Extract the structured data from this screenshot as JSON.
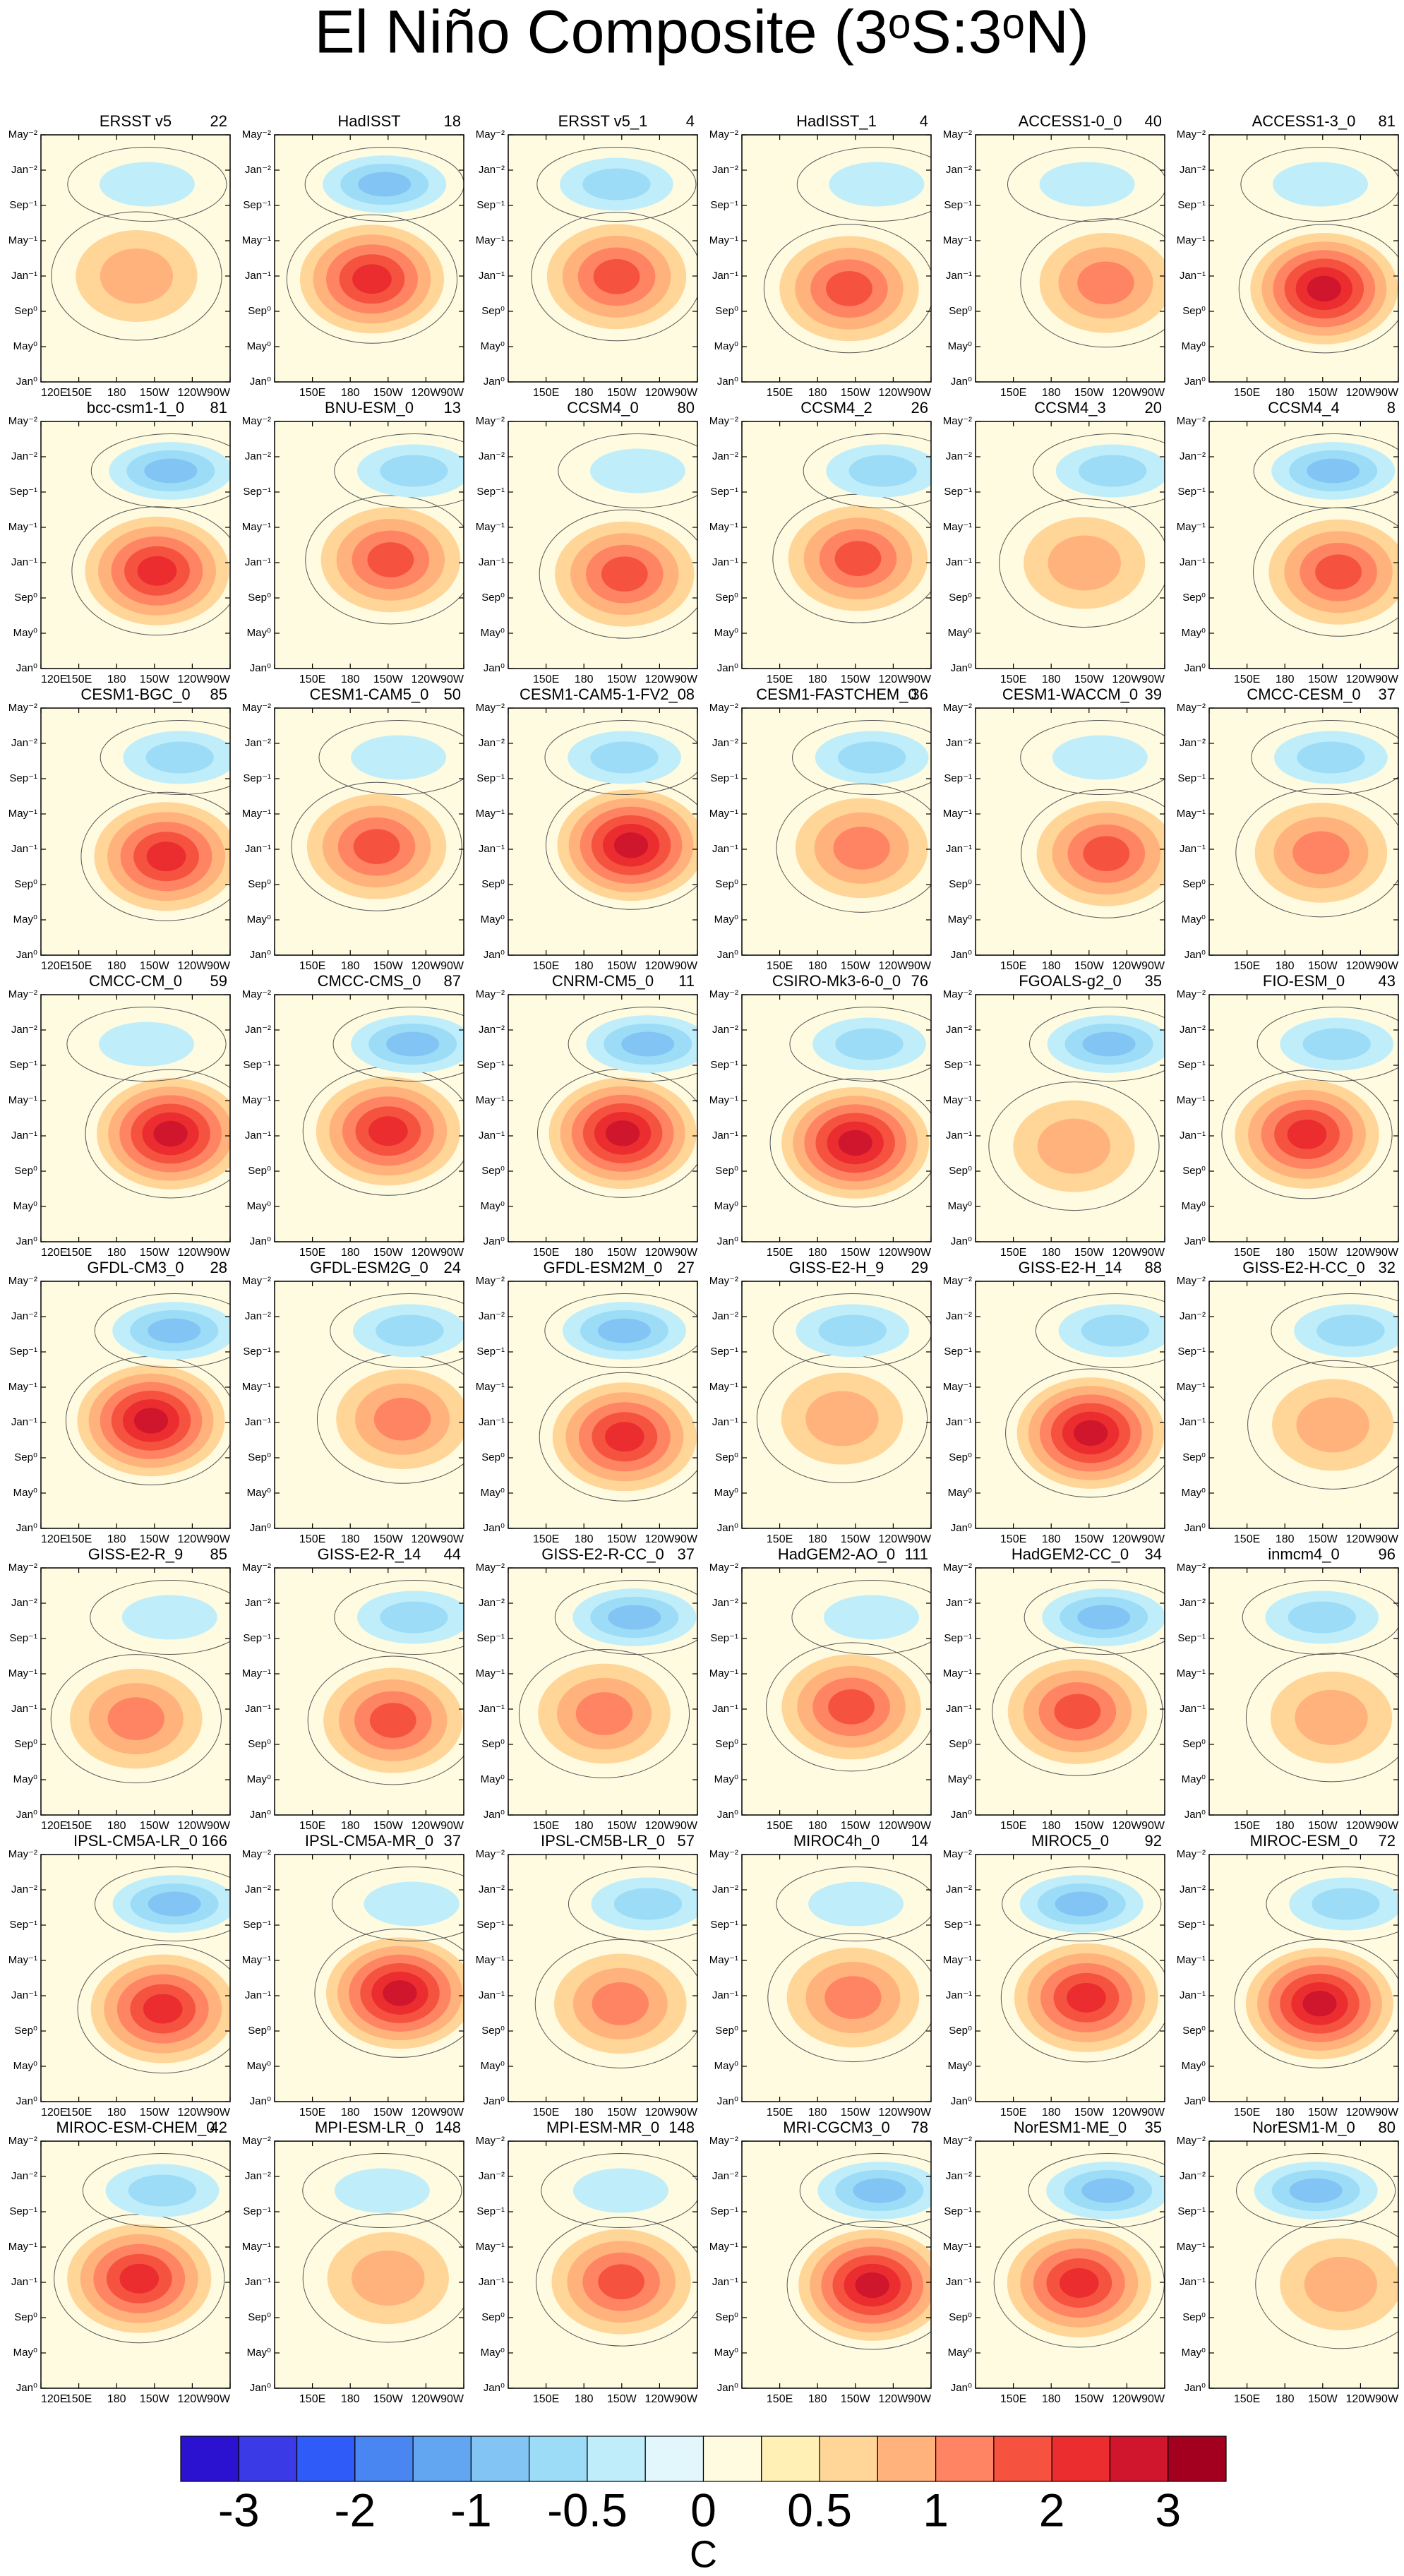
{
  "figure": {
    "title": "El Niño Composite (3ᵒS:3ᵒN)",
    "panels": [
      {
        "name": "ERSST v5",
        "count": 22
      },
      {
        "name": "HadISST",
        "count": 18
      },
      {
        "name": "ERSST v5_1",
        "count": 4
      },
      {
        "name": "HadISST_1",
        "count": 4
      },
      {
        "name": "ACCESS1-0_0",
        "count": 40
      },
      {
        "name": "ACCESS1-3_0",
        "count": 81
      },
      {
        "name": "bcc-csm1-1_0",
        "count": 81
      },
      {
        "name": "BNU-ESM_0",
        "count": 13
      },
      {
        "name": "CCSM4_0",
        "count": 80
      },
      {
        "name": "CCSM4_2",
        "count": 26
      },
      {
        "name": "CCSM4_3",
        "count": 20
      },
      {
        "name": "CCSM4_4",
        "count": 8
      },
      {
        "name": "CESM1-BGC_0",
        "count": 85
      },
      {
        "name": "CESM1-CAM5_0",
        "count": 50
      },
      {
        "name": "CESM1-CAM5-1-FV2_0",
        "count": 8
      },
      {
        "name": "CESM1-FASTCHEM_0",
        "count": 36
      },
      {
        "name": "CESM1-WACCM_0",
        "count": 39
      },
      {
        "name": "CMCC-CESM_0",
        "count": 37
      },
      {
        "name": "CMCC-CM_0",
        "count": 59
      },
      {
        "name": "CMCC-CMS_0",
        "count": 87
      },
      {
        "name": "CNRM-CM5_0",
        "count": 11
      },
      {
        "name": "CSIRO-Mk3-6-0_0",
        "count": 76
      },
      {
        "name": "FGOALS-g2_0",
        "count": 35
      },
      {
        "name": "FIO-ESM_0",
        "count": 43
      },
      {
        "name": "GFDL-CM3_0",
        "count": 28
      },
      {
        "name": "GFDL-ESM2G_0",
        "count": 24
      },
      {
        "name": "GFDL-ESM2M_0",
        "count": 27
      },
      {
        "name": "GISS-E2-H_9",
        "count": 29
      },
      {
        "name": "GISS-E2-H_14",
        "count": 88
      },
      {
        "name": "GISS-E2-H-CC_0",
        "count": 32
      },
      {
        "name": "GISS-E2-R_9",
        "count": 85
      },
      {
        "name": "GISS-E2-R_14",
        "count": 44
      },
      {
        "name": "GISS-E2-R-CC_0",
        "count": 37
      },
      {
        "name": "HadGEM2-AO_0",
        "count": 111
      },
      {
        "name": "HadGEM2-CC_0",
        "count": 34
      },
      {
        "name": "inmcm4_0",
        "count": 96
      },
      {
        "name": "IPSL-CM5A-LR_0",
        "count": 166
      },
      {
        "name": "IPSL-CM5A-MR_0",
        "count": 37
      },
      {
        "name": "IPSL-CM5B-LR_0",
        "count": 57
      },
      {
        "name": "MIROC4h_0",
        "count": 14
      },
      {
        "name": "MIROC5_0",
        "count": 92
      },
      {
        "name": "MIROC-ESM_0",
        "count": 72
      },
      {
        "name": "MIROC-ESM-CHEM_0",
        "count": 42
      },
      {
        "name": "MPI-ESM-LR_0",
        "count": 148
      },
      {
        "name": "MPI-ESM-MR_0",
        "count": 148
      },
      {
        "name": "MRI-CGCM3_0",
        "count": 78
      },
      {
        "name": "NorESM1-ME_0",
        "count": 35
      },
      {
        "name": "NorESM1-M_0",
        "count": 80
      }
    ],
    "y_labels": [
      "May⁻²",
      "Jan⁻²",
      "Sep⁻¹",
      "May⁻¹",
      "Jan⁻¹",
      "Sep⁰",
      "May⁰",
      "Jan⁰"
    ],
    "x_labels": [
      "120E",
      "150E",
      "180",
      "150W",
      "120W",
      "90W"
    ],
    "colorbar": {
      "colors": [
        "#2a12d0",
        "#3a3ae6",
        "#2f5cf8",
        "#4a86f2",
        "#62a6f2",
        "#82c4f4",
        "#9ddcf7",
        "#bfeefa",
        "#e2f7fb",
        "#fffbe0",
        "#fff0b6",
        "#ffd598",
        "#ffb27c",
        "#ff8463",
        "#f5533f",
        "#ec2d2f",
        "#d0162d",
        "#a3001f"
      ],
      "ticks": [
        -3,
        -2,
        -1,
        -0.5,
        0,
        0.5,
        1,
        2,
        3
      ],
      "label": "C"
    }
  }
}
